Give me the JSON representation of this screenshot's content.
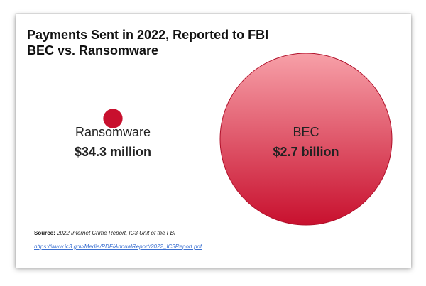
{
  "chart_data": {
    "type": "bubble",
    "title": "Payments Sent in 2022, Reported to FBI",
    "subtitle": "BEC vs. Ransomware",
    "items": [
      {
        "name": "Ransomware",
        "label": "$34.3 million",
        "value": 34.3
      },
      {
        "name": "BEC",
        "label": "$2.7 billion",
        "value": 2700
      }
    ],
    "units": "million USD",
    "colors": {
      "bubble_top": "#f7a0a8",
      "bubble_bottom": "#c8102e"
    }
  },
  "source": {
    "prefix": "Source:",
    "text": "2022 Internet Crime Report, IC3 Unit of the FBI",
    "url": "https://www.ic3.gov/Media/PDF/AnnualReport/2022_IC3Report.pdf"
  }
}
